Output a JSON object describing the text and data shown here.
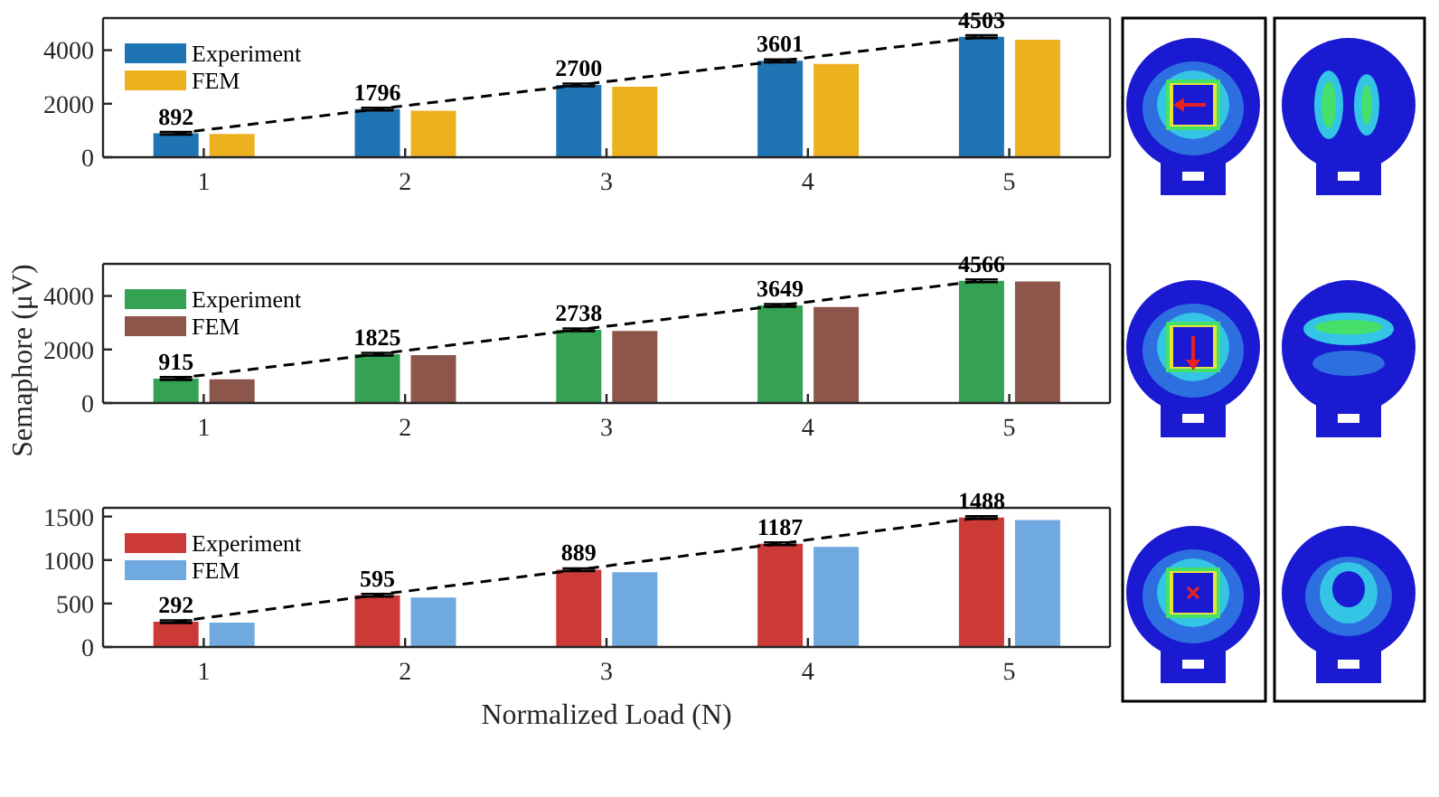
{
  "chart_data": [
    {
      "type": "bar",
      "categories": [
        "1",
        "2",
        "3",
        "4",
        "5"
      ],
      "series": [
        {
          "name": "Experiment",
          "color": "#1f74b4",
          "values": [
            892,
            1796,
            2700,
            3601,
            4503
          ],
          "errors": [
            50,
            50,
            50,
            50,
            50
          ],
          "value_labels": [
            "892",
            "1796",
            "2700",
            "3601",
            "4503"
          ]
        },
        {
          "name": "FEM",
          "color": "#edb120",
          "values": [
            870,
            1740,
            2630,
            3490,
            4390
          ]
        },
        {
          "type": "line",
          "color": "#000000",
          "line_style": "dashed",
          "values": [
            890,
            1800,
            2700,
            3600,
            4500
          ]
        }
      ],
      "ylim": [
        0,
        5200
      ],
      "yticks": [
        0,
        2000,
        4000
      ],
      "legend": "top left"
    },
    {
      "type": "bar",
      "categories": [
        "1",
        "2",
        "3",
        "4",
        "5"
      ],
      "series": [
        {
          "name": "Experiment",
          "color": "#34a153",
          "values": [
            915,
            1825,
            2738,
            3649,
            4566
          ],
          "errors": [
            50,
            50,
            50,
            50,
            50
          ],
          "value_labels": [
            "915",
            "1825",
            "2738",
            "3649",
            "4566"
          ]
        },
        {
          "name": "FEM",
          "color": "#8c564b",
          "values": [
            890,
            1790,
            2690,
            3590,
            4540
          ]
        },
        {
          "type": "line",
          "color": "#000000",
          "line_style": "dashed",
          "values": [
            920,
            1830,
            2740,
            3650,
            4570
          ]
        }
      ],
      "ylim": [
        0,
        5200
      ],
      "yticks": [
        0,
        2000,
        4000
      ],
      "ylabel": "Semaphore (μV)",
      "legend": "top left"
    },
    {
      "type": "bar",
      "categories": [
        "1",
        "2",
        "3",
        "4",
        "5"
      ],
      "series": [
        {
          "name": "Experiment",
          "color": "#cc3a37",
          "values": [
            292,
            595,
            889,
            1187,
            1488
          ],
          "errors": [
            15,
            15,
            15,
            15,
            15
          ],
          "value_labels": [
            "292",
            "595",
            "889",
            "1187",
            "1488"
          ]
        },
        {
          "name": "FEM",
          "color": "#6fa9e0",
          "values": [
            280,
            570,
            860,
            1150,
            1460
          ]
        },
        {
          "type": "line",
          "color": "#000000",
          "line_style": "dashed",
          "values": [
            290,
            600,
            890,
            1190,
            1490
          ]
        }
      ],
      "ylim": [
        0,
        1600
      ],
      "yticks": [
        0,
        500,
        1000,
        1500
      ],
      "xlabel": "Normalized Load (N)",
      "legend": "top left"
    }
  ]
}
